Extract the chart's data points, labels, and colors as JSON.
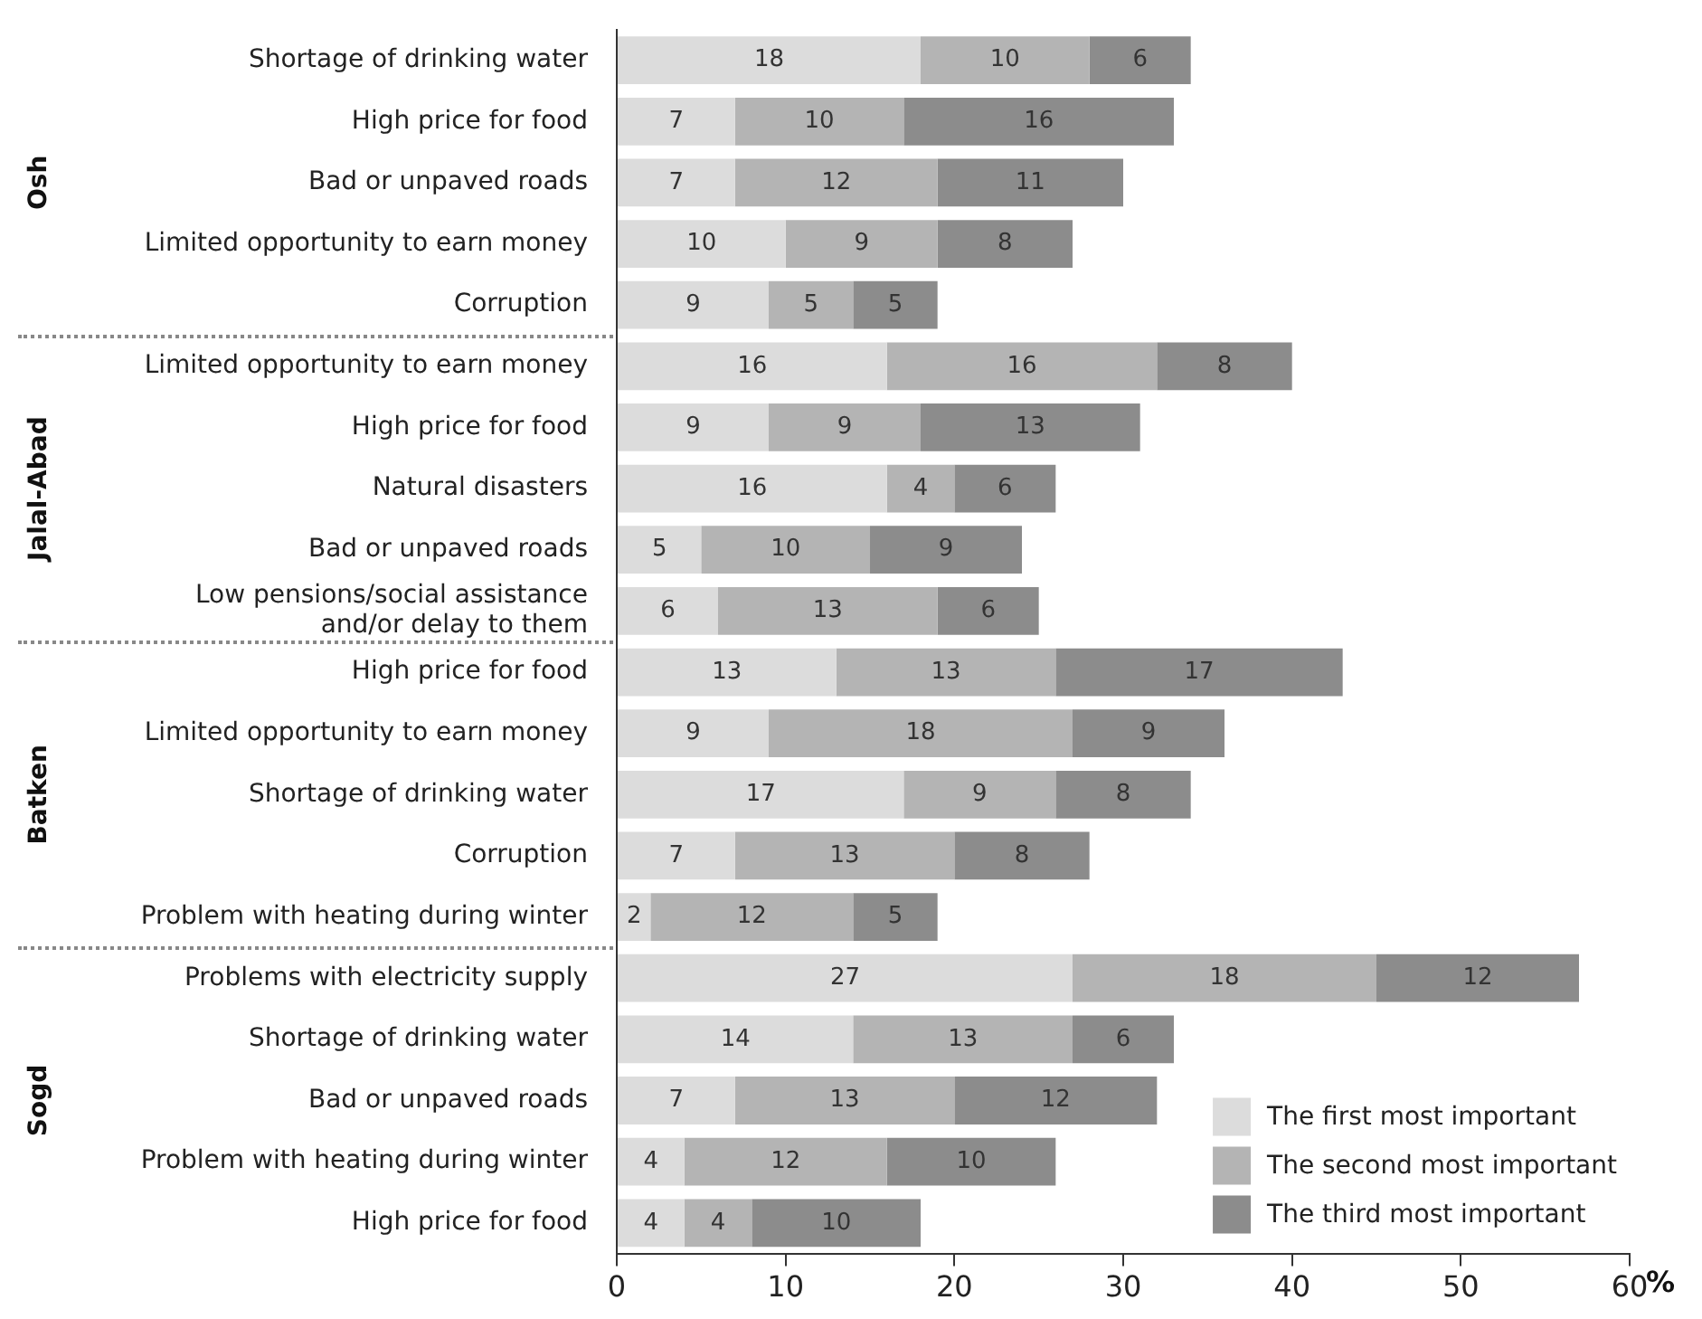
{
  "chart_data": {
    "type": "bar",
    "orientation": "horizontal",
    "stacked": true,
    "data_labels": true,
    "grid": false,
    "legend": "bottom right",
    "xlabel": "%",
    "categories": [
      "Shortage of drinking water",
      "High price for food",
      "Bad or unpaved roads",
      "Limited opportunity to earn money",
      "Corruption",
      "Limited opportunity to earn money",
      "High price for food",
      "Natural disasters",
      "Bad or unpaved roads",
      "Low pensions/social assistance\nand/or delay to them",
      "High price for food",
      "Limited opportunity to earn money",
      "Shortage of drinking water",
      "Corruption",
      "Problem with heating during winter",
      "Problems with electricity supply",
      "Shortage of drinking water",
      "Bad or unpaved roads",
      "Problem with heating during winter",
      "High price for food"
    ],
    "annotations": [
      "Osh",
      "Jalal-Abad",
      "Batken",
      "Sogd"
    ],
    "xlim": [
      0,
      60
    ],
    "xticks": [
      0,
      10,
      20,
      30,
      40,
      50,
      60
    ],
    "series": [
      {
        "name": "The first most important",
        "color": "#dcdcdc",
        "values": [
          18,
          7,
          7,
          10,
          9,
          16,
          9,
          16,
          5,
          6,
          13,
          9,
          17,
          7,
          2,
          27,
          14,
          7,
          4,
          4
        ]
      },
      {
        "name": "The second most important",
        "color": "#b4b4b4",
        "values": [
          10,
          10,
          12,
          9,
          5,
          16,
          9,
          4,
          10,
          13,
          13,
          18,
          9,
          13,
          12,
          18,
          13,
          13,
          12,
          4
        ]
      },
      {
        "name": "The third most important",
        "color": "#8c8c8c",
        "values": [
          6,
          16,
          11,
          8,
          5,
          8,
          13,
          6,
          9,
          6,
          17,
          9,
          8,
          8,
          5,
          12,
          6,
          12,
          10,
          10
        ]
      }
    ]
  }
}
